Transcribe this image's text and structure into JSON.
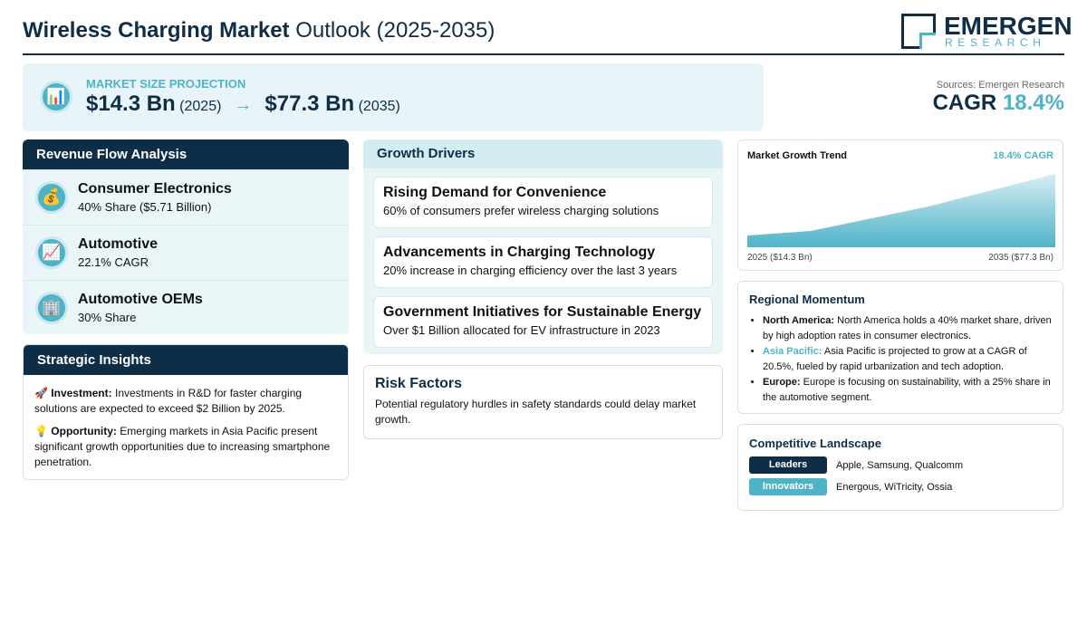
{
  "header": {
    "title_bold": "Wireless Charging Market",
    "title_rest": "Outlook (2025-2035)",
    "logo_main": "EMERGEN",
    "logo_sub": "RESEARCH"
  },
  "projection": {
    "label": "MARKET SIZE PROJECTION",
    "start_value": "$14.3 Bn",
    "start_year": "(2025)",
    "end_value": "$77.3 Bn",
    "end_year": "(2035)"
  },
  "summary": {
    "source": "Sources: Emergen Research",
    "cagr_label": "CAGR",
    "cagr_value": "18.4%"
  },
  "revenue_flow": {
    "title": "Revenue Flow Analysis",
    "items": [
      {
        "name": "Consumer Electronics",
        "detail": "40% Share ($5.71 Billion)"
      },
      {
        "name": "Automotive",
        "detail": "22.1% CAGR"
      },
      {
        "name": "Automotive OEMs",
        "detail": "30% Share"
      }
    ]
  },
  "growth_drivers": {
    "title": "Growth Drivers",
    "items": [
      {
        "title": "Rising Demand for Convenience",
        "text": "60% of consumers prefer wireless charging solutions"
      },
      {
        "title": "Advancements in Charging Technology",
        "text": "20% increase in charging efficiency over the last 3 years"
      },
      {
        "title": "Government Initiatives for Sustainable Energy",
        "text": "Over $1 Billion allocated for EV infrastructure in 2023"
      }
    ]
  },
  "risk_factors": {
    "title": "Risk Factors",
    "text": "Potential regulatory hurdles in safety standards could delay market growth."
  },
  "strategic_insights": {
    "title": "Strategic Insights",
    "items": [
      {
        "label": "Investment:",
        "text": "Investments in R&D for faster charging solutions are expected to exceed $2 Billion by 2025."
      },
      {
        "label": "Opportunity:",
        "text": "Emerging markets in Asia Pacific present significant growth opportunities due to increasing smartphone penetration."
      }
    ]
  },
  "trend": {
    "title": "Market Growth Trend",
    "badge": "18.4% CAGR",
    "start_label": "2025 ($14.3 Bn)",
    "end_label": "2035 ($77.3 Bn)"
  },
  "regional": {
    "title": "Regional Momentum",
    "items": [
      {
        "label": "North America:",
        "text": "North America holds a 40% market share, driven by high adoption rates in consumer electronics."
      },
      {
        "label": "Asia Pacific:",
        "text": "Asia Pacific is projected to grow at a CAGR of 20.5%, fueled by rapid urbanization and tech adoption."
      },
      {
        "label": "Europe:",
        "text": "Europe is focusing on sustainability, with a 25% share in the automotive segment."
      }
    ]
  },
  "competitive": {
    "title": "Competitive Landscape",
    "rows": [
      {
        "tag": "Leaders",
        "companies": "Apple, Samsung, Qualcomm"
      },
      {
        "tag": "Innovators",
        "companies": "Energous, WiTricity, Ossia"
      }
    ]
  }
}
